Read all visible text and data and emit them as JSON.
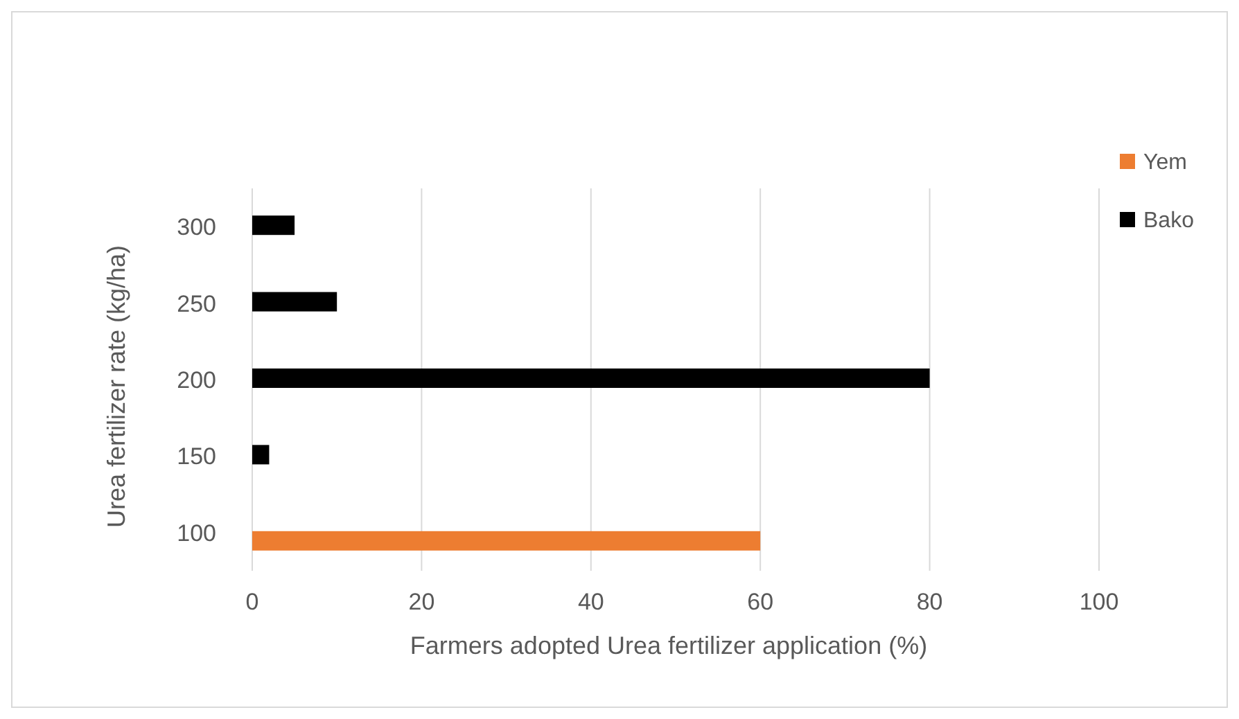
{
  "chart_data": {
    "type": "bar",
    "orientation": "horizontal",
    "xlabel": "Farmers adopted Urea fertilizer application (%)",
    "ylabel": "Urea fertilizer rate (kg/ha)",
    "categories": [
      "300",
      "250",
      "200",
      "150",
      "100"
    ],
    "series": [
      {
        "name": "Yem",
        "color": "#ed7d31",
        "values": [
          null,
          null,
          null,
          null,
          60
        ]
      },
      {
        "name": "Bako",
        "color": "#000000",
        "values": [
          5,
          10,
          80,
          2,
          null
        ]
      }
    ],
    "xlim": [
      0,
      100
    ],
    "xticks": [
      0,
      20,
      40,
      60,
      80,
      100
    ],
    "grid": "x",
    "legend": "right"
  }
}
